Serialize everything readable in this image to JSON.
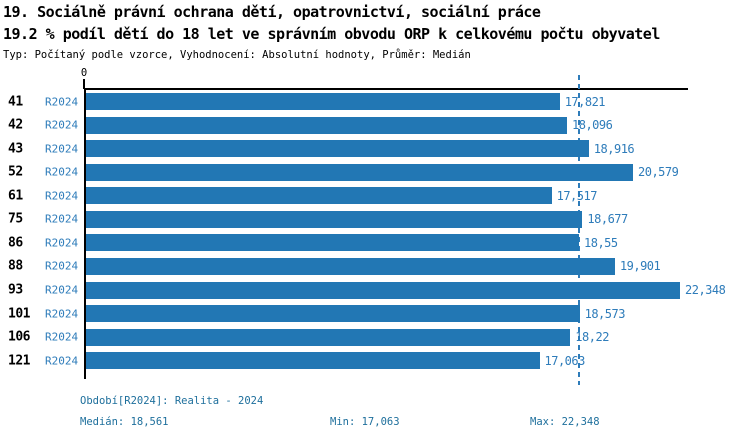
{
  "header": {
    "title": "19. Sociálně právní ochrana dětí, opatrovnictví, sociální práce",
    "subtitle": "19.2 % podíl dětí do 18 let ve správním obvodu ORP k celkovému počtu obyvatel",
    "meta": "Typ: Počítaný podle vzorce, Vyhodnocení: Absolutní hodnoty, Průměr: Medián"
  },
  "chart_data": {
    "type": "bar",
    "orientation": "horizontal",
    "title": "19.2 % podíl dětí do 18 let ve správním obvodu ORP k celkovému počtu obyvatel",
    "categories": [
      "41",
      "42",
      "43",
      "52",
      "61",
      "75",
      "86",
      "88",
      "93",
      "101",
      "106",
      "121"
    ],
    "series": [
      {
        "name": "R2024",
        "values": [
          17.821,
          18.096,
          18.916,
          20.579,
          17.517,
          18.677,
          18.55,
          19.901,
          22.348,
          18.573,
          18.22,
          17.063
        ]
      }
    ],
    "value_labels": [
      "17,821",
      "18,096",
      "18,916",
      "20,579",
      "17,517",
      "18,677",
      "18,55",
      "19,901",
      "22,348",
      "18,573",
      "18,22",
      "17,063"
    ],
    "xlabel": "",
    "ylabel": "",
    "xlim": [
      0,
      22.65
    ],
    "zero_tick_label": "0",
    "median": 18.561,
    "min": 17.063,
    "max": 22.348,
    "grid": false,
    "legend": false,
    "bar_color": "#2277b4",
    "median_line_color": "#2e7cba",
    "value_label_color": "#2e7cba"
  },
  "footer": {
    "period": "Období[R2024]: Realita - 2024",
    "median": "Medián: 18,561",
    "min": "Min: 17,063",
    "max": "Max: 22,348"
  }
}
